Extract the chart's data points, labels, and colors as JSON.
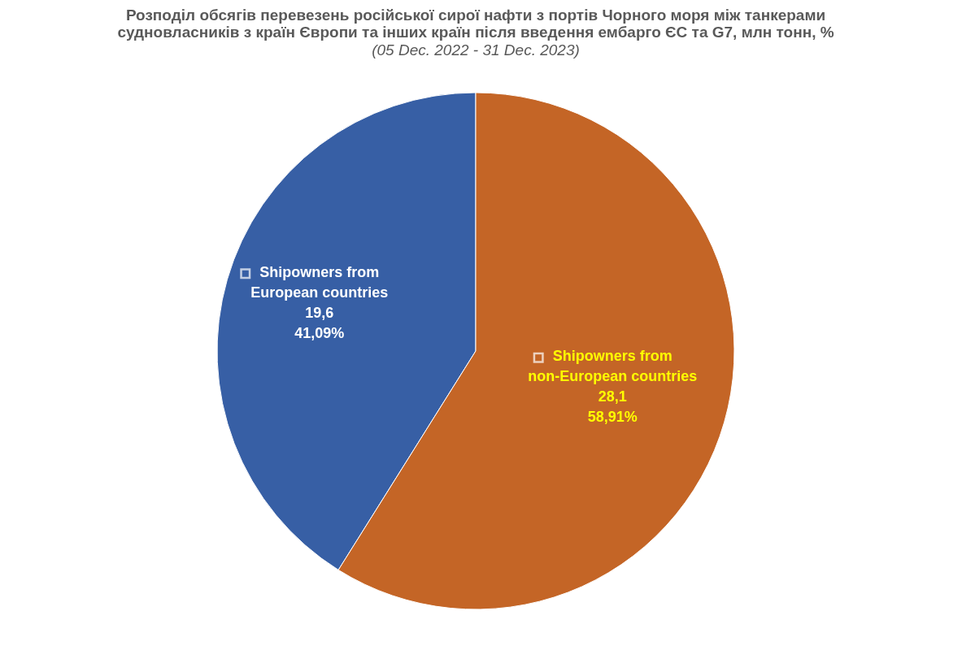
{
  "chart_data": {
    "type": "pie",
    "title": "Розподіл обсягів перевезень російської сирої нафти з портів Чорного моря між танкерами судновласників з країн Європи та інших країн після введення ембарго ЄС та G7, млн тонн, %",
    "subtitle": "(05 Dec. 2022 - 31 Dec. 2023)",
    "categories": [
      "Shipowners from European countries",
      "Shipowners from non-European countries"
    ],
    "values": [
      19.6,
      28.1
    ],
    "colors": [
      "#375fa5",
      "#c46526"
    ],
    "value_labels": [
      "19,6\n41,09%",
      "28,1\n58,91%"
    ],
    "legend": "center"
  }
}
